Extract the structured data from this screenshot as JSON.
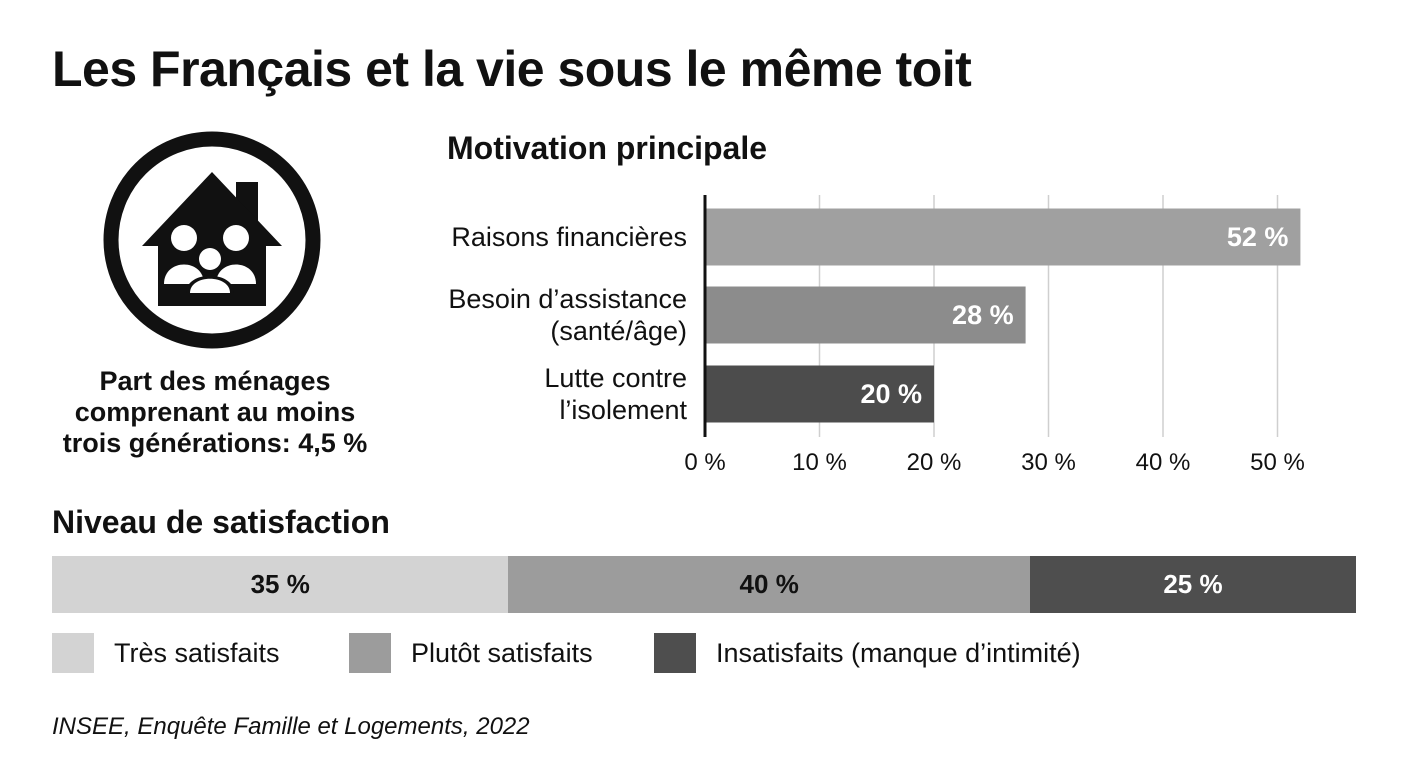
{
  "title": "Les Français et la vie sous le même toit",
  "icon": "house-family-icon",
  "household_stat": {
    "lines": [
      "Part des ménages",
      "comprenant au moins",
      "trois générations: 4,5 %"
    ],
    "value": 4.5
  },
  "source": "INSEE, Enquête Famille et Logements, 2022",
  "chart_data": [
    {
      "type": "bar",
      "orientation": "horizontal",
      "title": "Motivation principale",
      "categories": [
        [
          "Raisons financières"
        ],
        [
          "Besoin d’assistance",
          "(santé/âge)"
        ],
        [
          "Lutte contre",
          "l’isolement"
        ]
      ],
      "values": [
        52,
        28,
        20
      ],
      "value_labels": [
        "52 %",
        "28 %",
        "20 %"
      ],
      "colors": [
        "#a0a0a0",
        "#8c8c8c",
        "#4c4c4c"
      ],
      "xlim": [
        0,
        52
      ],
      "xticks": [
        0,
        10,
        20,
        30,
        40,
        50
      ],
      "xtick_labels": [
        "0 %",
        "10 %",
        "20 %",
        "30 %",
        "40 %",
        "50 %"
      ],
      "grid": true
    },
    {
      "type": "bar",
      "orientation": "stacked-horizontal",
      "title": "Niveau de satisfaction",
      "categories": [
        "Très satisfaits",
        "Plutôt satisfaits",
        "Insatisfaits (manque d’intimité)"
      ],
      "values": [
        35,
        40,
        25
      ],
      "value_labels": [
        "35 %",
        "40 %",
        "25 %"
      ],
      "colors": [
        "#d3d3d3",
        "#9c9c9c",
        "#4e4e4e"
      ],
      "text_colors": [
        "#111111",
        "#111111",
        "#ffffff"
      ],
      "legend_placement": "bottom"
    }
  ]
}
